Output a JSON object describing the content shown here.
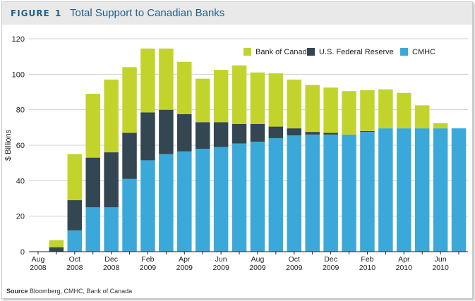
{
  "figure": {
    "label": "FIGURE",
    "number": "1",
    "title": "Total Support to Canadian Banks"
  },
  "source": {
    "label": "Source",
    "text": "Bloomberg, CMHC, Bank of Canada"
  },
  "chart_data": {
    "type": "bar",
    "stacked": true,
    "ylabel": "$ Billions",
    "ylim": [
      0,
      120
    ],
    "yticks": [
      0,
      20,
      40,
      60,
      80,
      100,
      120
    ],
    "grid": "horizontal",
    "legend_position": "top-right",
    "categories": [
      "Aug 2008",
      "Sep 2008",
      "Oct 2008",
      "Nov 2008",
      "Dec 2008",
      "Jan 2009",
      "Feb 2009",
      "Mar 2009",
      "Apr 2009",
      "May 2009",
      "Jun 2009",
      "Jul 2009",
      "Aug 2009",
      "Sep 2009",
      "Oct 2009",
      "Nov 2009",
      "Dec 2009",
      "Jan 2010",
      "Feb 2010",
      "Mar 2010",
      "Apr 2010",
      "May 2010",
      "Jun 2010",
      "Jul 2010"
    ],
    "xtick_labels": [
      {
        "month": "Aug",
        "year": "2008"
      },
      null,
      {
        "month": "Oct",
        "year": "2008"
      },
      null,
      {
        "month": "Dec",
        "year": "2008"
      },
      null,
      {
        "month": "Feb",
        "year": "2009"
      },
      null,
      {
        "month": "Apr",
        "year": "2009"
      },
      null,
      {
        "month": "Jun",
        "year": "2009"
      },
      null,
      {
        "month": "Aug",
        "year": "2009"
      },
      null,
      {
        "month": "Oct",
        "year": "2009"
      },
      null,
      {
        "month": "Dec",
        "year": "2009"
      },
      null,
      {
        "month": "Feb",
        "year": "2010"
      },
      null,
      {
        "month": "Apr",
        "year": "2010"
      },
      null,
      {
        "month": "Jun",
        "year": "2010"
      },
      null
    ],
    "series": [
      {
        "name": "CMHC",
        "color": "#3aa9d9",
        "values": [
          null,
          0,
          12,
          25,
          25,
          41,
          51.5,
          55,
          56.5,
          58,
          59,
          61,
          62,
          64,
          65.5,
          66,
          66,
          66,
          67.5,
          69.5,
          69.5,
          69.5,
          69.5,
          69.5
        ]
      },
      {
        "name": "U.S. Federal Reserve",
        "color": "#334651",
        "values": [
          null,
          2.5,
          17,
          28,
          31,
          26,
          27,
          25,
          21,
          15,
          14,
          11,
          10,
          6.5,
          4,
          1.5,
          1,
          0,
          0.5,
          0,
          0,
          0,
          0,
          0
        ]
      },
      {
        "name": "Bank of Canada",
        "color": "#c2d42c",
        "values": [
          null,
          4,
          26,
          36,
          41,
          37,
          36,
          34.5,
          29.5,
          24.5,
          29.5,
          33,
          29,
          30,
          27.5,
          26.5,
          25.5,
          24.5,
          23,
          22,
          20,
          13,
          3,
          0
        ]
      }
    ]
  }
}
